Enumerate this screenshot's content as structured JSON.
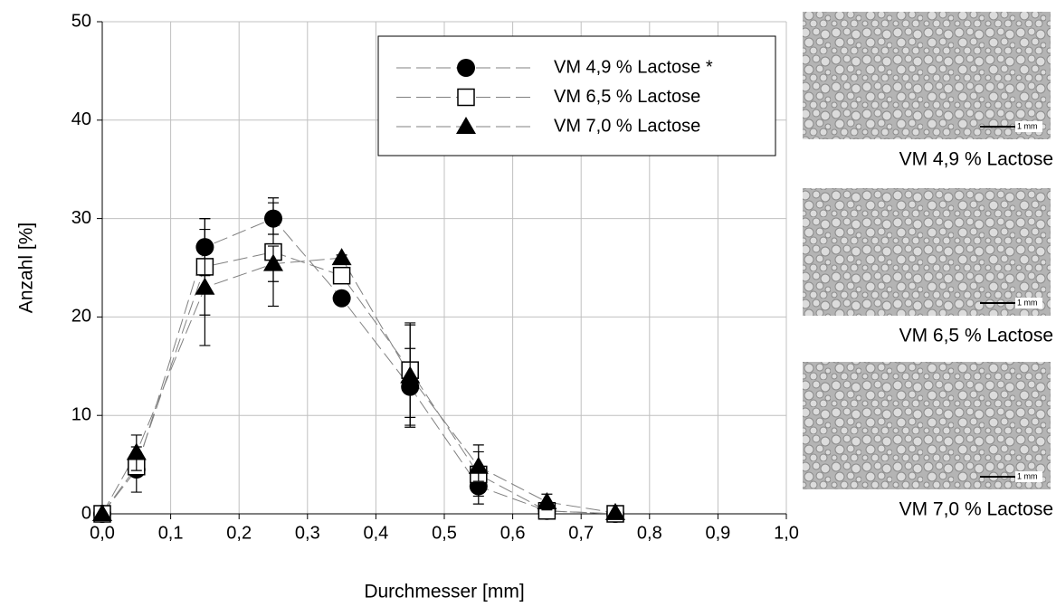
{
  "chart_data": {
    "type": "line",
    "xlabel": "Durchmesser [mm]",
    "ylabel": "Anzahl [%]",
    "x": [
      0,
      0.05,
      0.15,
      0.25,
      0.35,
      0.45,
      0.55,
      0.65,
      0.75
    ],
    "series": [
      {
        "name": "VM 4,9 % Lactose *",
        "marker": "circle",
        "color": "#000000",
        "line_color": "#808080",
        "values": [
          0,
          4.5,
          27.1,
          30.0,
          21.9,
          12.9,
          2.8,
          0.3,
          0
        ],
        "errors": [
          0,
          2.3,
          2.9,
          1.6,
          0.4,
          3.9,
          1.0,
          0.2,
          0
        ]
      },
      {
        "name": "VM 6,5 % Lactose",
        "marker": "square",
        "color": "#000000",
        "line_color": "#808080",
        "values": [
          0,
          4.8,
          25.1,
          26.6,
          24.2,
          14.6,
          4.0,
          0.3,
          0
        ],
        "errors": [
          0,
          0.8,
          4.9,
          5.5,
          0.8,
          4.8,
          3.0,
          0.3,
          0
        ]
      },
      {
        "name": "VM 7,0 % Lactose",
        "marker": "triangle",
        "color": "#000000",
        "line_color": "#808080",
        "values": [
          0,
          6.2,
          23.0,
          25.4,
          26.0,
          14.0,
          4.8,
          1.2,
          0.1
        ],
        "errors": [
          0,
          1.8,
          5.9,
          1.8,
          0.3,
          5.2,
          1.5,
          0.8,
          0
        ]
      }
    ],
    "xlim": [
      0,
      1.0
    ],
    "ylim": [
      0,
      50
    ],
    "xticks": [
      {
        "value": 0,
        "label": "0,0"
      },
      {
        "value": 0.1,
        "label": "0,1"
      },
      {
        "value": 0.2,
        "label": "0,2"
      },
      {
        "value": 0.3,
        "label": "0,3"
      },
      {
        "value": 0.4,
        "label": "0,4"
      },
      {
        "value": 0.5,
        "label": "0,5"
      },
      {
        "value": 0.6,
        "label": "0,6"
      },
      {
        "value": 0.7,
        "label": "0,7"
      },
      {
        "value": 0.8,
        "label": "0,8"
      },
      {
        "value": 0.9,
        "label": "0,9"
      },
      {
        "value": 1.0,
        "label": "1,0"
      }
    ],
    "yticks": [
      0,
      10,
      20,
      30,
      40,
      50
    ],
    "grid": true,
    "legend": "upper right"
  },
  "images": [
    {
      "caption": "VM 4,9 % Lactose",
      "scale_label": "1 mm"
    },
    {
      "caption": "VM 6,5 % Lactose",
      "scale_label": "1 mm"
    },
    {
      "caption": "VM 7,0 % Lactose",
      "scale_label": "1 mm"
    }
  ]
}
